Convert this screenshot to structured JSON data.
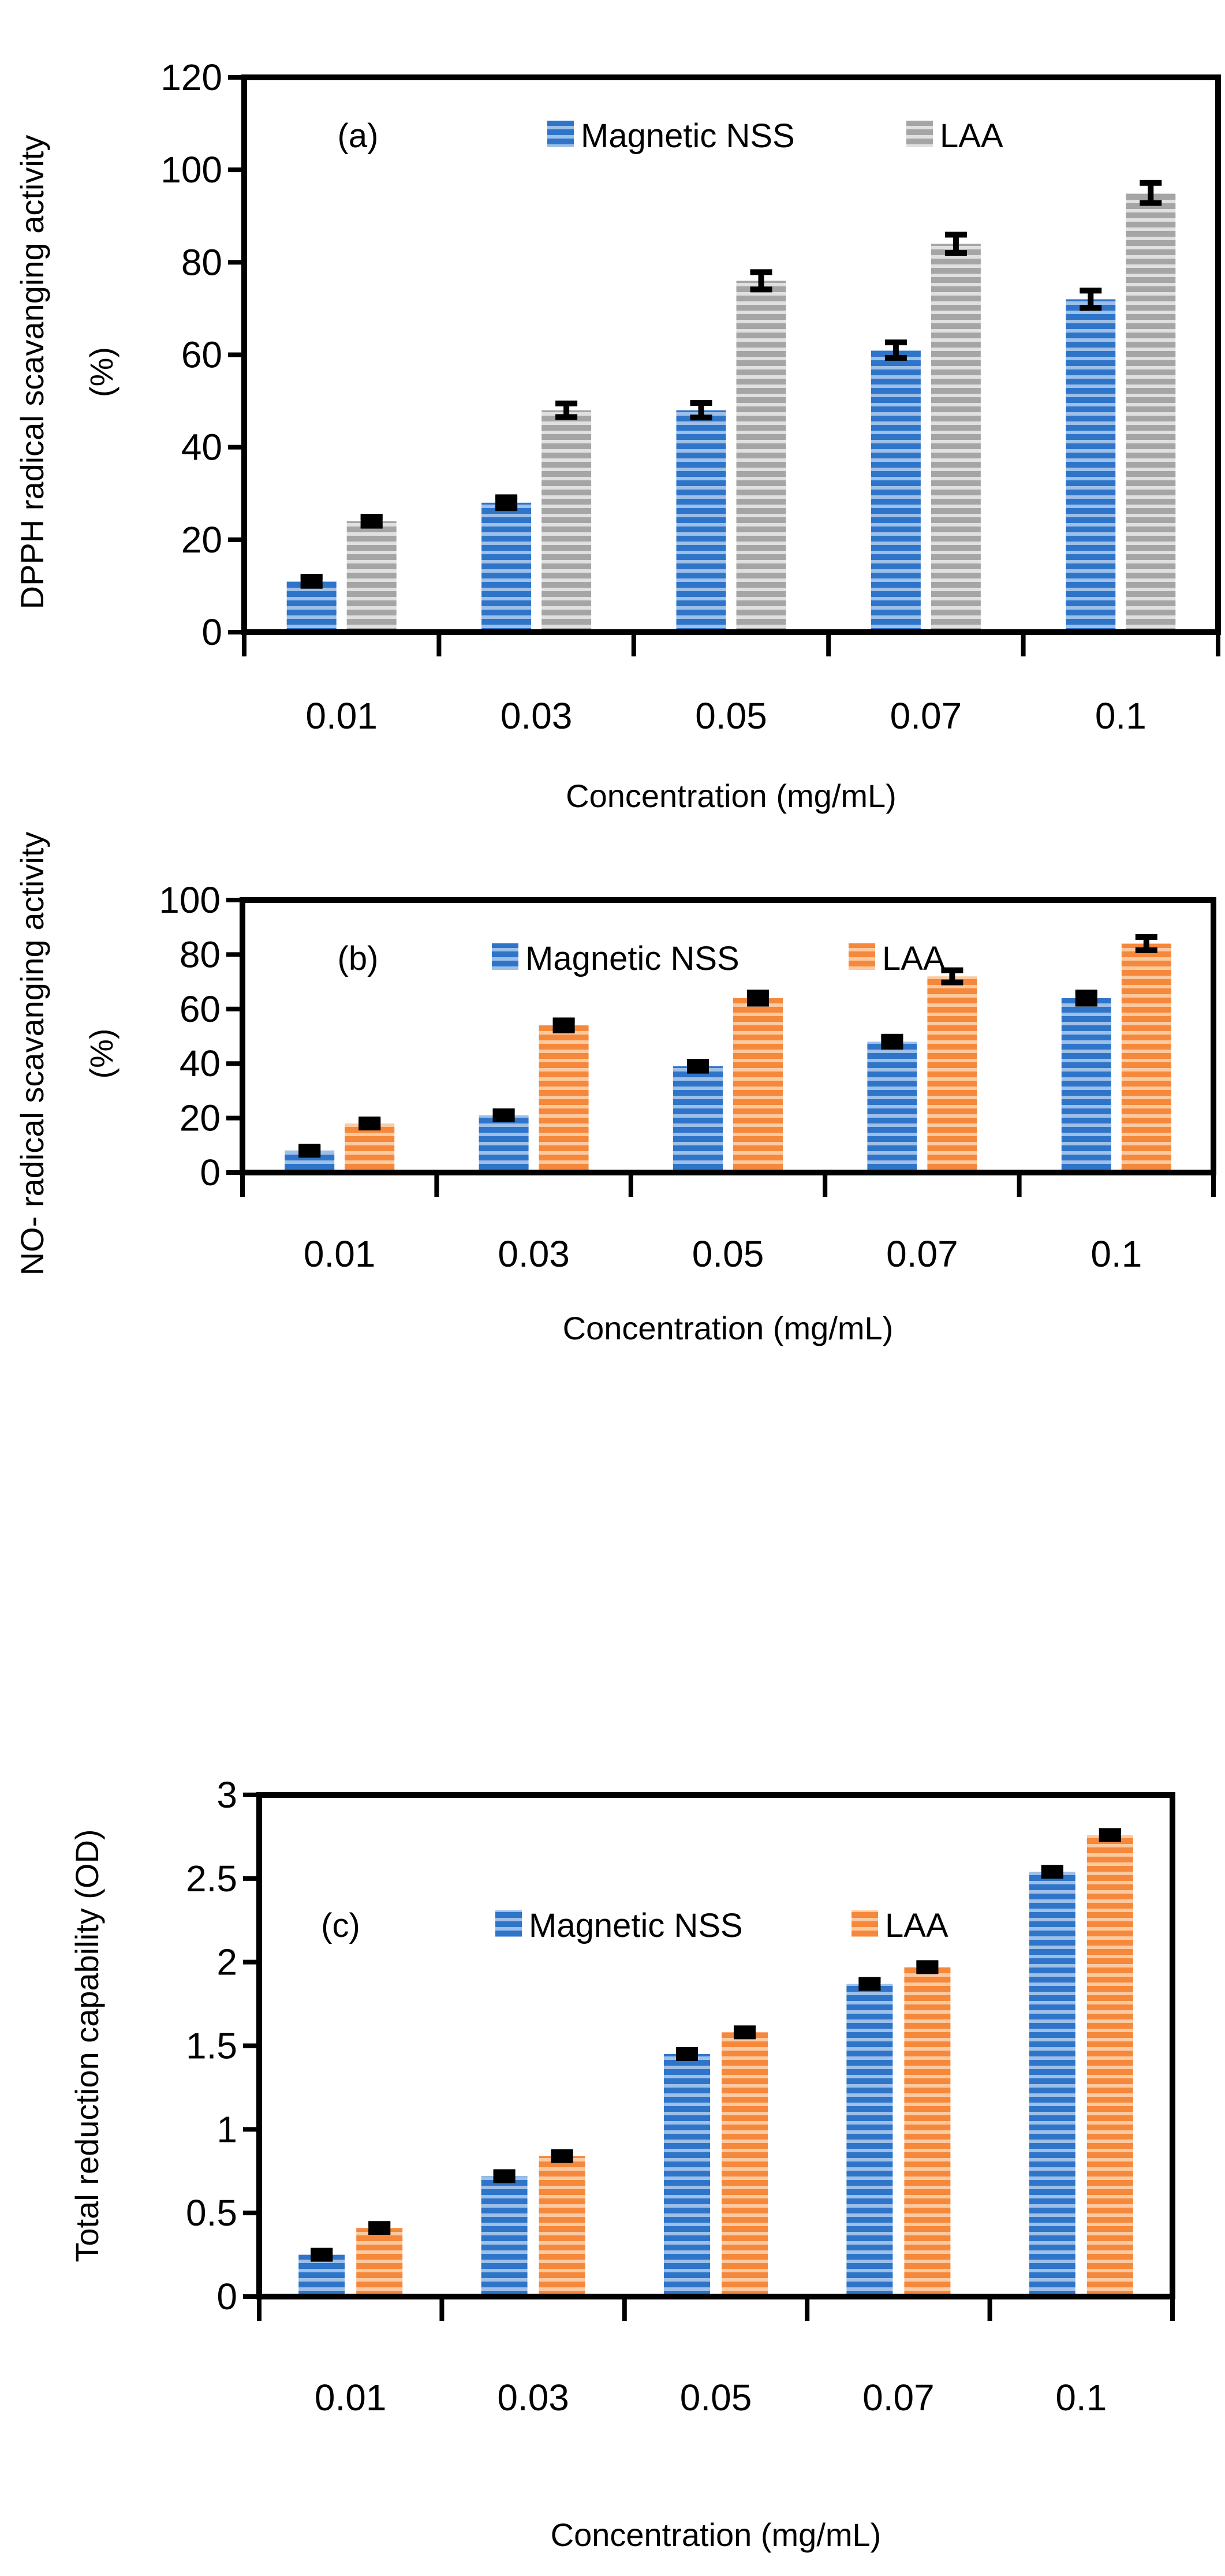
{
  "colors": {
    "nss": "#2e75c9",
    "nss_light": "#9dbfe8",
    "laa_gray": "#a5a5a5",
    "laa_gray_light": "#e0e0e0",
    "laa_orange": "#f5883a",
    "laa_orange_light": "#fcc9a0",
    "axis": "#000000"
  },
  "chart_data": [
    {
      "type": "bar",
      "panel_label": "(a)",
      "categories": [
        "0.01",
        "0.03",
        "0.05",
        "0.07",
        "0.1"
      ],
      "xlabel": "Concentration (mg/mL)",
      "ylabel": [
        "DPPH radical scavanging activity",
        "(%)"
      ],
      "ylim": [
        0,
        120
      ],
      "yticks": [
        0,
        20,
        40,
        60,
        80,
        100,
        120
      ],
      "grid": false,
      "legend_position": "top-center",
      "series": [
        {
          "name": "Magnetic NSS",
          "color": "nss",
          "values": [
            11,
            28,
            48,
            61,
            72
          ],
          "errors": [
            0.6,
            0.8,
            1.2,
            1.3,
            1.5
          ]
        },
        {
          "name": "LAA",
          "color": "laa_gray",
          "values": [
            24,
            48,
            76,
            84,
            95
          ],
          "errors": [
            0.6,
            1.1,
            1.5,
            1.6,
            1.8
          ]
        }
      ]
    },
    {
      "type": "bar",
      "panel_label": "(b)",
      "categories": [
        "0.01",
        "0.03",
        "0.05",
        "0.07",
        "0.1"
      ],
      "xlabel": "Concentration (mg/mL)",
      "ylabel": [
        "NO- radical scavanging activity",
        "(%)"
      ],
      "ylim": [
        0,
        100
      ],
      "yticks": [
        0,
        20,
        40,
        60,
        80,
        100
      ],
      "grid": false,
      "legend_position": "top-center",
      "series": [
        {
          "name": "Magnetic NSS",
          "color": "nss",
          "values": [
            8,
            21,
            39,
            48,
            64
          ],
          "errors": [
            0.4,
            0.6,
            1.0,
            1.2,
            1.4
          ]
        },
        {
          "name": "LAA",
          "color": "laa_orange",
          "values": [
            18,
            54,
            64,
            72,
            84
          ],
          "errors": [
            0.5,
            1.2,
            1.4,
            1.6,
            1.8
          ]
        }
      ]
    },
    {
      "type": "bar",
      "panel_label": "(c)",
      "categories": [
        "0.01",
        "0.03",
        "0.05",
        "0.07",
        "0.1"
      ],
      "xlabel": "Concentration (mg/mL)",
      "ylabel": [
        "Total reduction capability (OD)"
      ],
      "ylim": [
        0,
        3
      ],
      "yticks": [
        0,
        0.5,
        1,
        1.5,
        2,
        2.5,
        3
      ],
      "grid": false,
      "legend_position": "top-center",
      "series": [
        {
          "name": "Magnetic NSS",
          "color": "nss",
          "values": [
            0.25,
            0.72,
            1.45,
            1.87,
            2.54
          ],
          "errors": [
            0.012,
            0.012,
            0.012,
            0.012,
            0.012
          ]
        },
        {
          "name": "LAA",
          "color": "laa_orange",
          "values": [
            0.41,
            0.84,
            1.58,
            1.97,
            2.76
          ],
          "errors": [
            0.012,
            0.012,
            0.012,
            0.012,
            0.012
          ]
        }
      ]
    }
  ]
}
